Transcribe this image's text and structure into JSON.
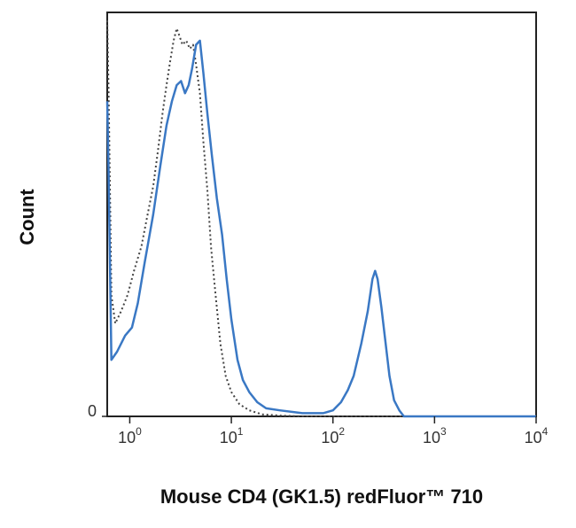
{
  "chart_data": {
    "type": "line",
    "title": "",
    "xlabel": "Mouse CD4 (GK1.5) redFluor™ 710",
    "ylabel": "Count",
    "xscale": "log",
    "xlim": [
      0.6,
      10000
    ],
    "ylim": [
      0,
      100
    ],
    "x_ticks": [
      {
        "base": "10",
        "exp": "0",
        "value": 1
      },
      {
        "base": "10",
        "exp": "1",
        "value": 10
      },
      {
        "base": "10",
        "exp": "2",
        "value": 100
      },
      {
        "base": "10",
        "exp": "3",
        "value": 1000
      },
      {
        "base": "10",
        "exp": "4",
        "value": 10000
      }
    ],
    "y_ticks": [
      {
        "label": "0",
        "value": 0
      }
    ],
    "grid": false,
    "legend": "none",
    "series": [
      {
        "color": "#444444",
        "dash": "dotted",
        "points": [
          [
            0.6,
            98
          ],
          [
            0.62,
            80
          ],
          [
            0.66,
            30
          ],
          [
            0.72,
            23
          ],
          [
            0.82,
            26
          ],
          [
            0.95,
            30
          ],
          [
            1.1,
            36
          ],
          [
            1.3,
            42
          ],
          [
            1.5,
            50
          ],
          [
            1.7,
            57
          ],
          [
            1.9,
            66
          ],
          [
            2.1,
            75
          ],
          [
            2.3,
            82
          ],
          [
            2.5,
            88
          ],
          [
            2.7,
            93
          ],
          [
            2.9,
            96
          ],
          [
            3.1,
            94
          ],
          [
            3.3,
            92
          ],
          [
            3.6,
            93
          ],
          [
            3.9,
            91
          ],
          [
            4.2,
            92
          ],
          [
            4.5,
            87
          ],
          [
            4.9,
            80
          ],
          [
            5.3,
            68
          ],
          [
            5.8,
            56
          ],
          [
            6.3,
            42
          ],
          [
            7,
            30
          ],
          [
            7.8,
            18
          ],
          [
            8.8,
            10
          ],
          [
            10,
            6
          ],
          [
            12,
            3
          ],
          [
            15,
            1.5
          ],
          [
            20,
            0.5
          ],
          [
            30,
            0.2
          ],
          [
            50,
            0
          ],
          [
            100,
            0
          ],
          [
            1000,
            0
          ],
          [
            10000,
            0
          ]
        ]
      },
      {
        "color": "#3a78c4",
        "dash": "solid",
        "points": [
          [
            0.6,
            78
          ],
          [
            0.62,
            60
          ],
          [
            0.66,
            14
          ],
          [
            0.75,
            16
          ],
          [
            0.9,
            20
          ],
          [
            1.05,
            22
          ],
          [
            1.2,
            28
          ],
          [
            1.4,
            38
          ],
          [
            1.7,
            50
          ],
          [
            2,
            62
          ],
          [
            2.3,
            72
          ],
          [
            2.6,
            78
          ],
          [
            2.9,
            82
          ],
          [
            3.2,
            83
          ],
          [
            3.5,
            80
          ],
          [
            3.8,
            82
          ],
          [
            4.1,
            86
          ],
          [
            4.5,
            92
          ],
          [
            4.9,
            93
          ],
          [
            5.3,
            85
          ],
          [
            5.8,
            75
          ],
          [
            6.4,
            65
          ],
          [
            7.2,
            54
          ],
          [
            8.1,
            45
          ],
          [
            9,
            34
          ],
          [
            10,
            24
          ],
          [
            11.5,
            14
          ],
          [
            13,
            9
          ],
          [
            15,
            6
          ],
          [
            18,
            3.5
          ],
          [
            22,
            2
          ],
          [
            30,
            1.5
          ],
          [
            50,
            0.8
          ],
          [
            80,
            0.8
          ],
          [
            100,
            1.5
          ],
          [
            120,
            3.5
          ],
          [
            140,
            6.5
          ],
          [
            160,
            10
          ],
          [
            190,
            18
          ],
          [
            220,
            26
          ],
          [
            245,
            34
          ],
          [
            260,
            36
          ],
          [
            275,
            34
          ],
          [
            300,
            27
          ],
          [
            330,
            18
          ],
          [
            360,
            10
          ],
          [
            400,
            4
          ],
          [
            450,
            1.5
          ],
          [
            500,
            0
          ],
          [
            1000,
            0
          ],
          [
            10000,
            0
          ]
        ]
      }
    ]
  }
}
